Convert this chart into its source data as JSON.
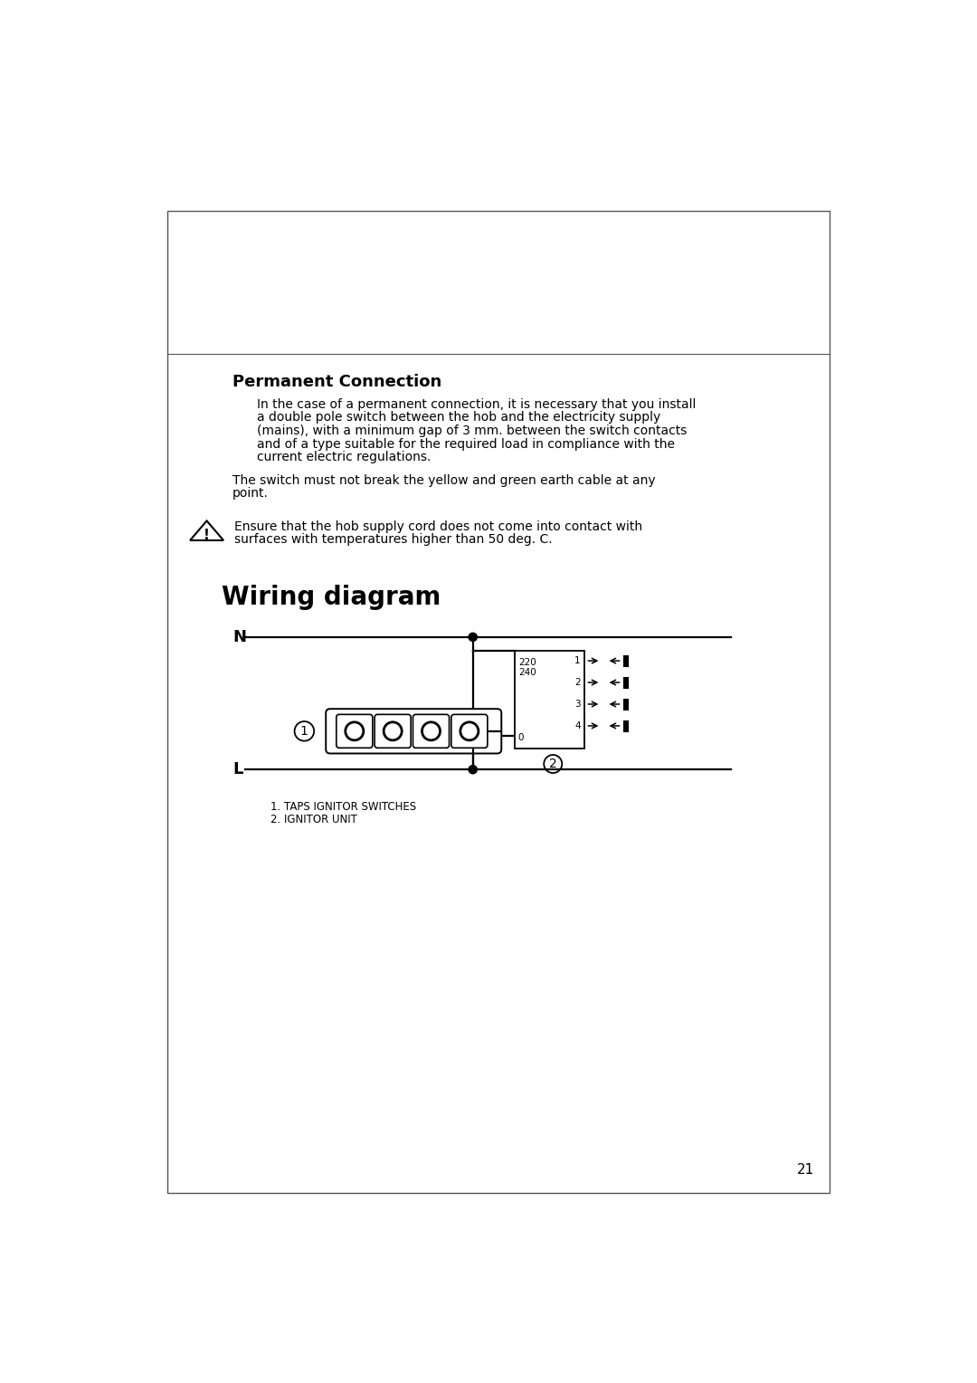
{
  "bg_color": "#ffffff",
  "title": "Wiring diagram",
  "section_header": "Permanent Connection",
  "para1_lines": [
    "In the case of a permanent connection, it is necessary that you install",
    "a double pole switch between the hob and the electricity supply",
    "(mains), with a minimum gap of 3 mm. between the switch contacts",
    "and of a type suitable for the required load in compliance with the",
    "current electric regulations."
  ],
  "para2_lines": [
    "The switch must not break the yellow and green earth cable at any",
    "point."
  ],
  "warning_lines": [
    "Ensure that the hob supply cord does not come into contact with",
    "surfaces with temperatures higher than 50 deg. C."
  ],
  "legend1": "1. TAPS IGNITOR SWITCHES",
  "legend2": "2. IGNITOR UNIT",
  "page_num": "21"
}
